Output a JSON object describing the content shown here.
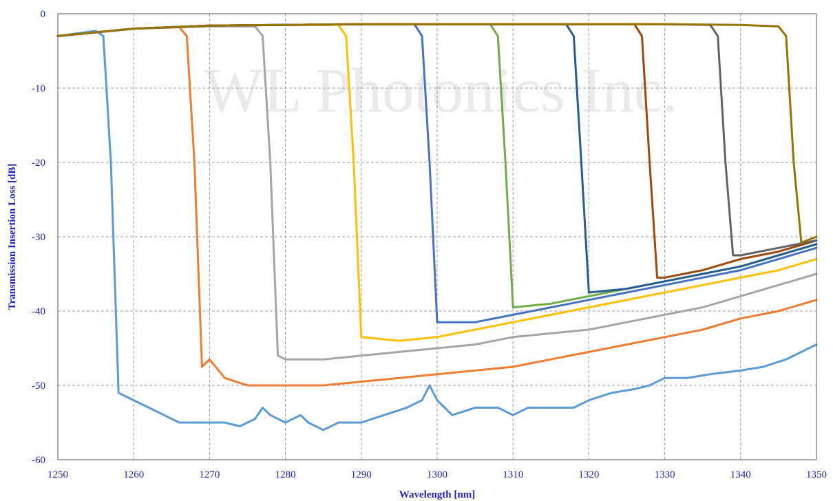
{
  "chart_data": {
    "type": "line",
    "title": "",
    "xlabel": "Wavelength [nm]",
    "ylabel": "Transmission Insertion Loss [dB]",
    "xlim": [
      1250,
      1350
    ],
    "ylim": [
      -60,
      0
    ],
    "x_ticks": [
      1250,
      1260,
      1270,
      1280,
      1290,
      1300,
      1310,
      1320,
      1330,
      1340,
      1350
    ],
    "y_ticks": [
      0,
      -10,
      -20,
      -30,
      -40,
      -50,
      -60
    ],
    "grid": true,
    "legend": "none",
    "watermark": "WL Photonics Inc.",
    "series": [
      {
        "color": "#5b9bd5",
        "x": [
          1250,
          1255,
          1256,
          1257,
          1258,
          1260,
          1262,
          1264,
          1266,
          1268,
          1270,
          1272,
          1274,
          1276,
          1277,
          1278,
          1280,
          1282,
          1283,
          1285,
          1287,
          1290,
          1293,
          1296,
          1298,
          1299,
          1300,
          1302,
          1305,
          1308,
          1310,
          1312,
          1315,
          1318,
          1320,
          1323,
          1326,
          1328,
          1330,
          1333,
          1336,
          1340,
          1343,
          1346,
          1348,
          1350
        ],
        "y": [
          -3.0,
          -2.3,
          -3,
          -20,
          -51,
          -52,
          -53,
          -54,
          -55,
          -55,
          -55,
          -55,
          -55.5,
          -54.5,
          -53,
          -54,
          -55,
          -54,
          -55,
          -56,
          -55,
          -55,
          -54,
          -53,
          -52,
          -50,
          -52,
          -54,
          -53,
          -53,
          -54,
          -53,
          -53,
          -53,
          -52,
          -51,
          -50.5,
          -50,
          -49,
          -49,
          -48.5,
          -48,
          -47.5,
          -46.5,
          -45.5,
          -44.5
        ]
      },
      {
        "color": "#ed7d31",
        "x": [
          1250,
          1260,
          1266,
          1267,
          1268,
          1269,
          1270,
          1272,
          1275,
          1280,
          1285,
          1290,
          1295,
          1300,
          1305,
          1310,
          1315,
          1320,
          1325,
          1330,
          1335,
          1340,
          1345,
          1350
        ],
        "y": [
          -3.0,
          -2.0,
          -1.8,
          -3,
          -20,
          -47.5,
          -46.5,
          -49,
          -50,
          -50,
          -50,
          -49.5,
          -49,
          -48.5,
          -48,
          -47.5,
          -46.5,
          -45.5,
          -44.5,
          -43.5,
          -42.5,
          -41,
          -40,
          -38.5
        ]
      },
      {
        "color": "#a5a5a5",
        "x": [
          1250,
          1260,
          1270,
          1276,
          1277,
          1278,
          1279,
          1280,
          1285,
          1290,
          1295,
          1300,
          1305,
          1310,
          1315,
          1320,
          1325,
          1330,
          1335,
          1340,
          1345,
          1350
        ],
        "y": [
          -3.0,
          -2.0,
          -1.7,
          -1.7,
          -3,
          -20,
          -46,
          -46.5,
          -46.5,
          -46,
          -45.5,
          -45,
          -44.5,
          -43.5,
          -43,
          -42.5,
          -41.5,
          -40.5,
          -39.5,
          -38,
          -36.5,
          -35
        ]
      },
      {
        "color": "#ffc000",
        "x": [
          1250,
          1260,
          1270,
          1280,
          1287,
          1288,
          1289,
          1290,
          1295,
          1300,
          1305,
          1310,
          1315,
          1320,
          1325,
          1330,
          1335,
          1340,
          1345,
          1350
        ],
        "y": [
          -3.0,
          -2.0,
          -1.6,
          -1.5,
          -1.5,
          -3,
          -20,
          -43.5,
          -44,
          -43.5,
          -42.5,
          -41.5,
          -40.5,
          -39.5,
          -38.5,
          -37.5,
          -36.5,
          -35.5,
          -34.5,
          -33
        ]
      },
      {
        "color": "#4472c4",
        "x": [
          1250,
          1260,
          1270,
          1280,
          1290,
          1297,
          1298,
          1299,
          1300,
          1305,
          1310,
          1315,
          1320,
          1325,
          1330,
          1335,
          1340,
          1345,
          1350
        ],
        "y": [
          -3.0,
          -2.0,
          -1.6,
          -1.5,
          -1.4,
          -1.4,
          -3,
          -20,
          -41.5,
          -41.5,
          -40.5,
          -39.5,
          -38.5,
          -37.5,
          -36.5,
          -35.5,
          -34.5,
          -33,
          -31.5
        ]
      },
      {
        "color": "#70ad47",
        "x": [
          1250,
          1260,
          1270,
          1280,
          1290,
          1300,
          1307,
          1308,
          1309,
          1310,
          1315,
          1320,
          1325,
          1330,
          1335,
          1340,
          1345,
          1350
        ],
        "y": [
          -3.0,
          -2.0,
          -1.6,
          -1.5,
          -1.4,
          -1.4,
          -1.4,
          -3,
          -20,
          -39.5,
          -39,
          -38,
          -37,
          -36,
          -35,
          -34,
          -32.5,
          -31
        ]
      },
      {
        "color": "#255e91",
        "x": [
          1250,
          1260,
          1270,
          1280,
          1290,
          1300,
          1310,
          1317,
          1318,
          1319,
          1320,
          1325,
          1330,
          1335,
          1340,
          1345,
          1350
        ],
        "y": [
          -3.0,
          -2.0,
          -1.6,
          -1.5,
          -1.4,
          -1.4,
          -1.4,
          -1.4,
          -3,
          -20,
          -37.5,
          -37,
          -36,
          -35,
          -34,
          -32.5,
          -31
        ]
      },
      {
        "color": "#9e480e",
        "x": [
          1250,
          1260,
          1270,
          1280,
          1290,
          1300,
          1310,
          1320,
          1326,
          1327,
          1328,
          1329,
          1330,
          1335,
          1340,
          1345,
          1350
        ],
        "y": [
          -3.0,
          -2.0,
          -1.6,
          -1.5,
          -1.4,
          -1.4,
          -1.4,
          -1.4,
          -1.4,
          -3,
          -20,
          -35.5,
          -35.5,
          -34.5,
          -33,
          -32,
          -30.5
        ]
      },
      {
        "color": "#636363",
        "x": [
          1250,
          1260,
          1270,
          1280,
          1290,
          1300,
          1310,
          1320,
          1330,
          1336,
          1337,
          1338,
          1339,
          1340,
          1345,
          1350
        ],
        "y": [
          -3.0,
          -2.0,
          -1.6,
          -1.5,
          -1.4,
          -1.4,
          -1.4,
          -1.4,
          -1.4,
          -1.5,
          -3,
          -20,
          -32.5,
          -32.5,
          -31.5,
          -30.5
        ]
      },
      {
        "color": "#997300",
        "x": [
          1250,
          1260,
          1270,
          1280,
          1290,
          1300,
          1310,
          1320,
          1330,
          1340,
          1345,
          1346,
          1347,
          1348,
          1350
        ],
        "y": [
          -3.0,
          -2.0,
          -1.6,
          -1.5,
          -1.4,
          -1.4,
          -1.4,
          -1.4,
          -1.4,
          -1.5,
          -1.7,
          -3,
          -20,
          -30.8,
          -30
        ]
      }
    ]
  }
}
